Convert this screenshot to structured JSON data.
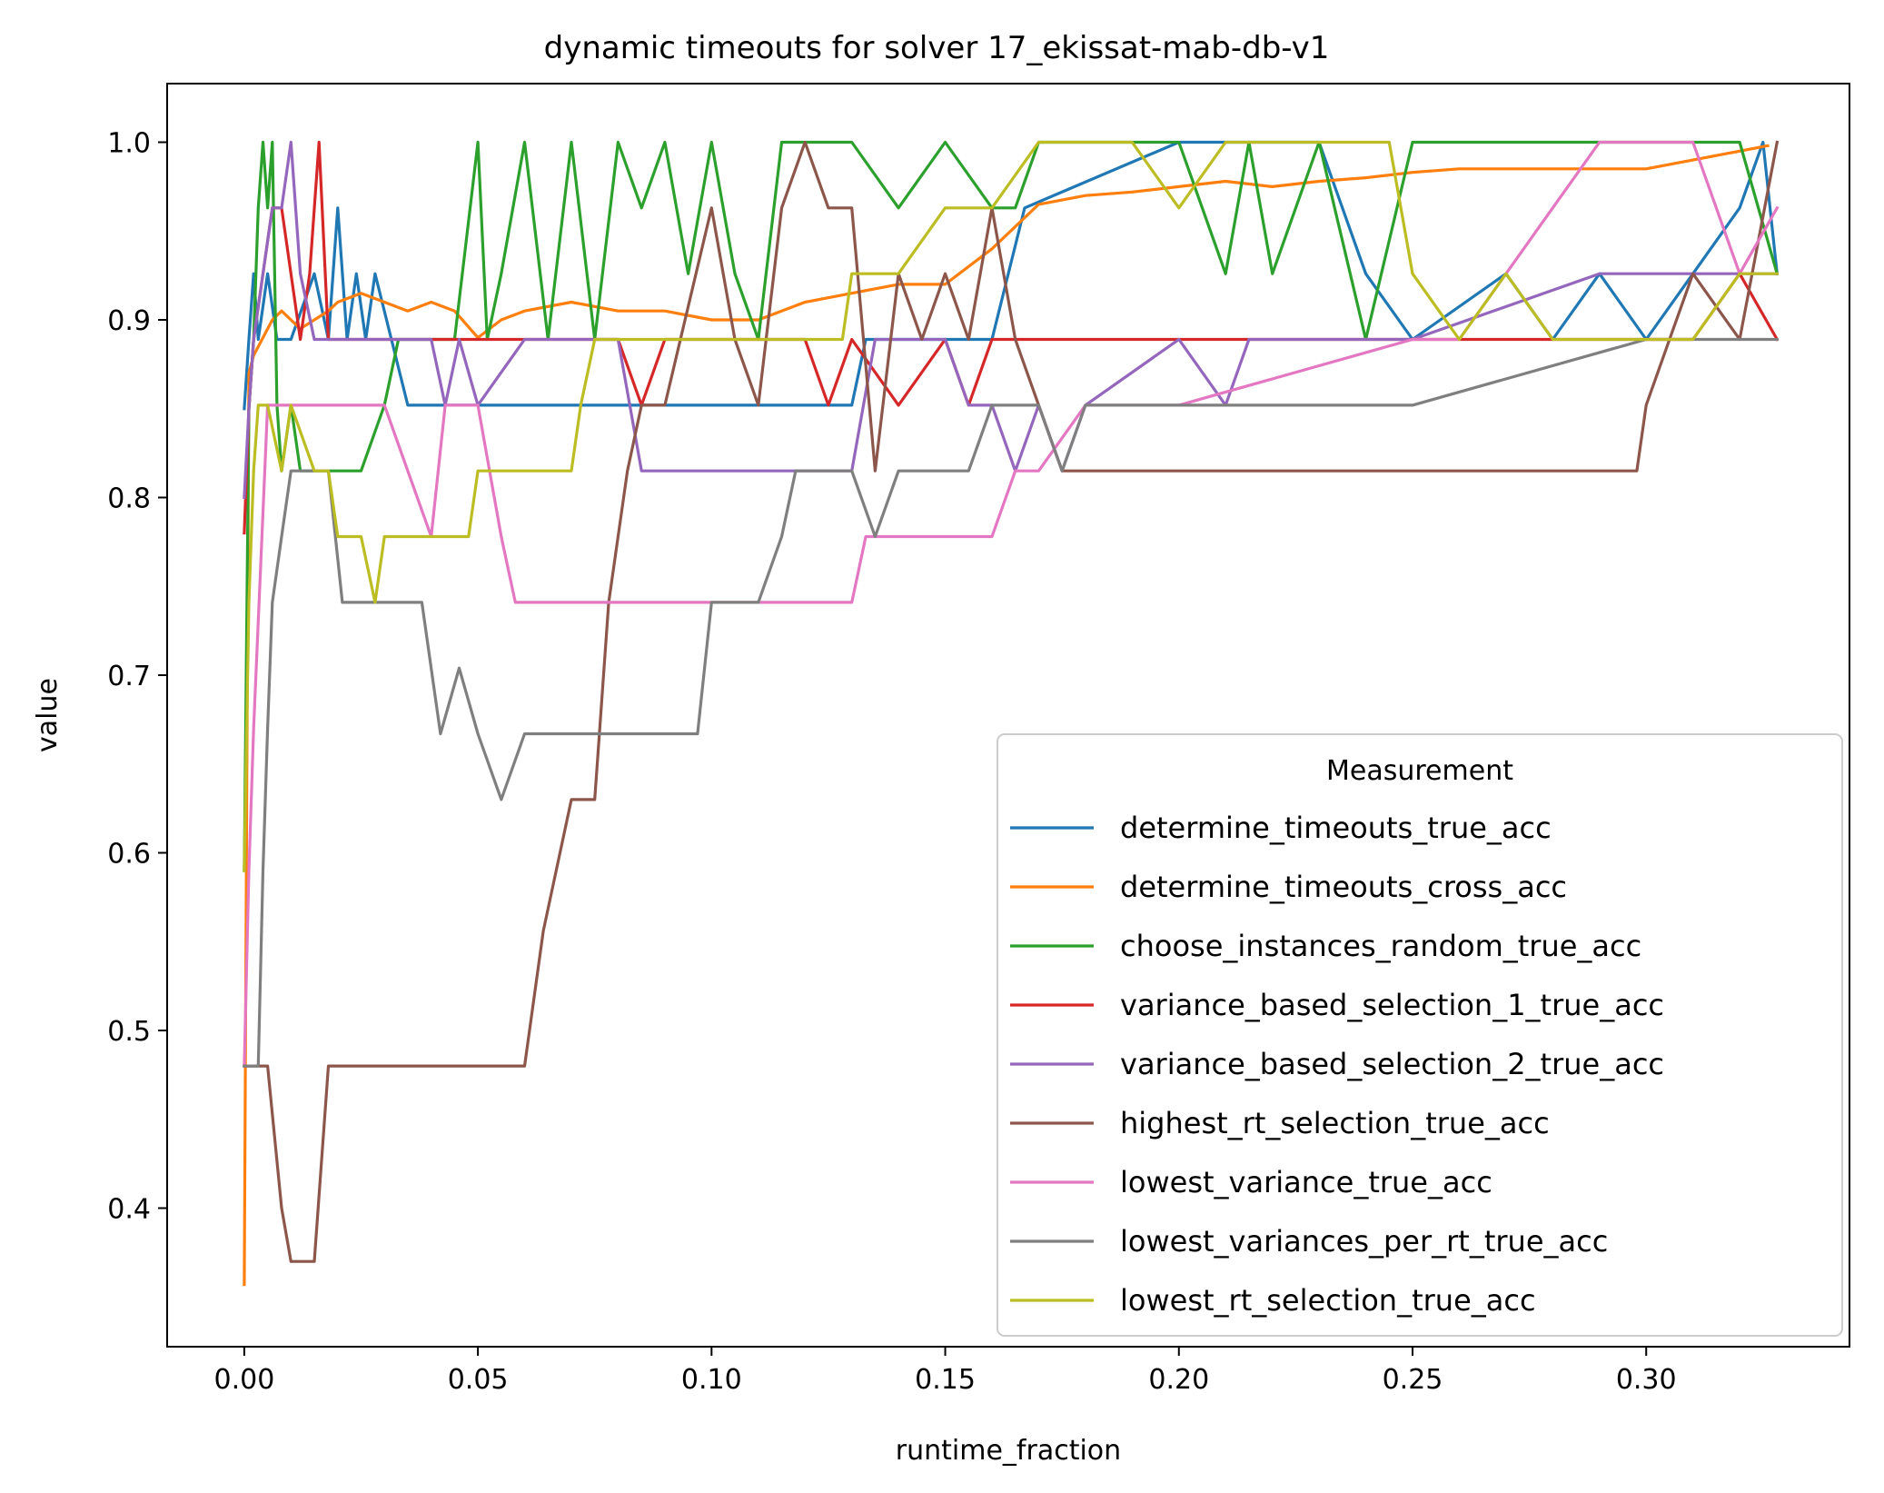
{
  "chart_data": {
    "type": "line",
    "title": "dynamic timeouts for solver 17_ekissat-mab-db-v1",
    "xlabel": "runtime_fraction",
    "ylabel": "value",
    "xlim": [
      -0.0165,
      0.3435
    ],
    "ylim": [
      0.322,
      1.033
    ],
    "xticks": [
      "0.00",
      "0.05",
      "0.10",
      "0.15",
      "0.20",
      "0.25",
      "0.30"
    ],
    "xtick_values": [
      0.0,
      0.05,
      0.1,
      0.15,
      0.2,
      0.25,
      0.3
    ],
    "yticks": [
      "0.4",
      "0.5",
      "0.6",
      "0.7",
      "0.8",
      "0.9",
      "1.0"
    ],
    "ytick_values": [
      0.4,
      0.5,
      0.6,
      0.7,
      0.8,
      0.9,
      1.0
    ],
    "grid": false,
    "legend": {
      "title": "Measurement",
      "placement": "lower-right"
    },
    "series": [
      {
        "name": "determine_timeouts_true_acc",
        "color": "#1f77b4",
        "x": [
          0,
          0.001,
          0.002,
          0.003,
          0.005,
          0.007,
          0.01,
          0.015,
          0.018,
          0.02,
          0.022,
          0.024,
          0.026,
          0.028,
          0.035,
          0.05,
          0.08,
          0.1,
          0.13,
          0.133,
          0.16,
          0.167,
          0.2,
          0.21,
          0.23,
          0.24,
          0.25,
          0.27,
          0.28,
          0.29,
          0.3,
          0.31,
          0.32,
          0.325,
          0.328
        ],
        "y": [
          0.85,
          0.889,
          0.926,
          0.889,
          0.926,
          0.889,
          0.889,
          0.926,
          0.889,
          0.963,
          0.889,
          0.926,
          0.889,
          0.926,
          0.852,
          0.852,
          0.852,
          0.852,
          0.852,
          0.889,
          0.889,
          0.963,
          1.0,
          1.0,
          1.0,
          0.926,
          0.889,
          0.926,
          0.889,
          0.926,
          0.889,
          0.926,
          0.963,
          1.0,
          0.926
        ]
      },
      {
        "name": "determine_timeouts_cross_acc",
        "color": "#ff7f0e",
        "x": [
          0,
          0.001,
          0.002,
          0.004,
          0.006,
          0.008,
          0.01,
          0.012,
          0.015,
          0.018,
          0.02,
          0.025,
          0.03,
          0.035,
          0.04,
          0.045,
          0.05,
          0.055,
          0.06,
          0.07,
          0.08,
          0.09,
          0.1,
          0.11,
          0.12,
          0.13,
          0.14,
          0.15,
          0.16,
          0.17,
          0.18,
          0.19,
          0.2,
          0.21,
          0.22,
          0.23,
          0.24,
          0.25,
          0.26,
          0.27,
          0.28,
          0.29,
          0.3,
          0.31,
          0.32,
          0.326
        ],
        "y": [
          0.357,
          0.87,
          0.88,
          0.89,
          0.9,
          0.905,
          0.9,
          0.895,
          0.9,
          0.905,
          0.91,
          0.915,
          0.91,
          0.905,
          0.91,
          0.905,
          0.89,
          0.9,
          0.905,
          0.91,
          0.905,
          0.905,
          0.9,
          0.9,
          0.91,
          0.915,
          0.92,
          0.92,
          0.94,
          0.965,
          0.97,
          0.972,
          0.975,
          0.978,
          0.975,
          0.978,
          0.98,
          0.983,
          0.985,
          0.985,
          0.985,
          0.985,
          0.985,
          0.99,
          0.995,
          0.998
        ]
      },
      {
        "name": "choose_instances_random_true_acc",
        "color": "#2ca02c",
        "x": [
          0,
          0.001,
          0.002,
          0.003,
          0.004,
          0.005,
          0.006,
          0.007,
          0.008,
          0.01,
          0.012,
          0.015,
          0.02,
          0.025,
          0.03,
          0.033,
          0.035,
          0.04,
          0.045,
          0.05,
          0.052,
          0.055,
          0.06,
          0.065,
          0.07,
          0.075,
          0.08,
          0.085,
          0.09,
          0.095,
          0.1,
          0.105,
          0.11,
          0.115,
          0.12,
          0.13,
          0.14,
          0.15,
          0.16,
          0.165,
          0.17,
          0.2,
          0.21,
          0.215,
          0.22,
          0.23,
          0.24,
          0.25,
          0.3,
          0.32,
          0.328
        ],
        "y": [
          0.59,
          0.85,
          0.889,
          0.963,
          1.0,
          0.963,
          1.0,
          0.852,
          0.815,
          0.852,
          0.815,
          0.815,
          0.815,
          0.815,
          0.852,
          0.889,
          0.889,
          0.889,
          0.889,
          1.0,
          0.889,
          0.926,
          1.0,
          0.889,
          1.0,
          0.889,
          1.0,
          0.963,
          1.0,
          0.926,
          1.0,
          0.926,
          0.889,
          1.0,
          1.0,
          1.0,
          0.963,
          1.0,
          0.963,
          0.963,
          1.0,
          1.0,
          0.926,
          1.0,
          0.926,
          1.0,
          0.889,
          1.0,
          1.0,
          1.0,
          0.926
        ]
      },
      {
        "name": "variance_based_selection_1_true_acc",
        "color": "#d62728",
        "x": [
          0,
          0.001,
          0.002,
          0.004,
          0.006,
          0.008,
          0.01,
          0.012,
          0.014,
          0.016,
          0.018,
          0.02,
          0.05,
          0.08,
          0.085,
          0.09,
          0.12,
          0.125,
          0.13,
          0.14,
          0.15,
          0.155,
          0.16,
          0.3,
          0.31,
          0.32,
          0.328
        ],
        "y": [
          0.78,
          0.85,
          0.889,
          0.926,
          0.963,
          0.963,
          0.926,
          0.889,
          0.926,
          1.0,
          0.889,
          0.889,
          0.889,
          0.889,
          0.852,
          0.889,
          0.889,
          0.852,
          0.889,
          0.852,
          0.889,
          0.852,
          0.889,
          0.889,
          0.889,
          0.926,
          0.889
        ]
      },
      {
        "name": "variance_based_selection_2_true_acc",
        "color": "#9467bd",
        "x": [
          0,
          0.001,
          0.002,
          0.004,
          0.006,
          0.008,
          0.01,
          0.012,
          0.015,
          0.02,
          0.04,
          0.043,
          0.046,
          0.05,
          0.06,
          0.07,
          0.08,
          0.085,
          0.09,
          0.13,
          0.135,
          0.15,
          0.155,
          0.16,
          0.165,
          0.17,
          0.175,
          0.18,
          0.2,
          0.21,
          0.215,
          0.25,
          0.29,
          0.3,
          0.328
        ],
        "y": [
          0.8,
          0.85,
          0.889,
          0.926,
          0.963,
          0.963,
          1.0,
          0.926,
          0.889,
          0.889,
          0.889,
          0.852,
          0.889,
          0.852,
          0.889,
          0.889,
          0.889,
          0.815,
          0.815,
          0.815,
          0.889,
          0.889,
          0.852,
          0.852,
          0.815,
          0.852,
          0.815,
          0.852,
          0.889,
          0.852,
          0.889,
          0.889,
          0.926,
          0.926,
          0.926
        ]
      },
      {
        "name": "highest_rt_selection_true_acc",
        "color": "#8c564b",
        "x": [
          0,
          0.001,
          0.002,
          0.005,
          0.008,
          0.01,
          0.015,
          0.018,
          0.03,
          0.06,
          0.064,
          0.07,
          0.075,
          0.078,
          0.082,
          0.085,
          0.09,
          0.1,
          0.105,
          0.11,
          0.115,
          0.12,
          0.125,
          0.13,
          0.135,
          0.14,
          0.145,
          0.15,
          0.155,
          0.16,
          0.165,
          0.17,
          0.175,
          0.18,
          0.2,
          0.25,
          0.298,
          0.3,
          0.305,
          0.31,
          0.32,
          0.328
        ],
        "y": [
          0.48,
          0.48,
          0.48,
          0.48,
          0.4,
          0.37,
          0.37,
          0.48,
          0.48,
          0.48,
          0.556,
          0.63,
          0.63,
          0.741,
          0.815,
          0.852,
          0.852,
          0.963,
          0.889,
          0.852,
          0.963,
          1.0,
          0.963,
          0.963,
          0.815,
          0.926,
          0.889,
          0.926,
          0.889,
          0.963,
          0.889,
          0.852,
          0.815,
          0.815,
          0.815,
          0.815,
          0.815,
          0.852,
          0.889,
          0.926,
          0.889,
          1.0
        ]
      },
      {
        "name": "lowest_variance_true_acc",
        "color": "#e377c2",
        "x": [
          0,
          0.001,
          0.002,
          0.005,
          0.01,
          0.015,
          0.03,
          0.035,
          0.04,
          0.043,
          0.046,
          0.05,
          0.055,
          0.058,
          0.07,
          0.1,
          0.13,
          0.133,
          0.15,
          0.16,
          0.165,
          0.17,
          0.18,
          0.2,
          0.25,
          0.26,
          0.27,
          0.28,
          0.29,
          0.3,
          0.31,
          0.32,
          0.328
        ],
        "y": [
          0.48,
          0.59,
          0.67,
          0.852,
          0.852,
          0.852,
          0.852,
          0.815,
          0.778,
          0.852,
          0.852,
          0.852,
          0.778,
          0.741,
          0.741,
          0.741,
          0.741,
          0.778,
          0.778,
          0.778,
          0.815,
          0.815,
          0.852,
          0.852,
          0.889,
          0.889,
          0.926,
          0.963,
          1.0,
          1.0,
          1.0,
          0.926,
          0.963
        ]
      },
      {
        "name": "lowest_variances_per_rt_true_acc",
        "color": "#7f7f7f",
        "x": [
          0,
          0.001,
          0.002,
          0.003,
          0.004,
          0.005,
          0.006,
          0.008,
          0.01,
          0.012,
          0.015,
          0.018,
          0.021,
          0.03,
          0.038,
          0.042,
          0.046,
          0.05,
          0.055,
          0.06,
          0.08,
          0.097,
          0.1,
          0.11,
          0.115,
          0.118,
          0.12,
          0.13,
          0.135,
          0.14,
          0.155,
          0.16,
          0.17,
          0.175,
          0.18,
          0.2,
          0.25,
          0.3,
          0.328
        ],
        "y": [
          0.48,
          0.48,
          0.48,
          0.48,
          0.59,
          0.67,
          0.741,
          0.778,
          0.815,
          0.815,
          0.815,
          0.815,
          0.741,
          0.741,
          0.741,
          0.667,
          0.704,
          0.667,
          0.63,
          0.667,
          0.667,
          0.667,
          0.741,
          0.741,
          0.778,
          0.815,
          0.815,
          0.815,
          0.778,
          0.815,
          0.815,
          0.852,
          0.852,
          0.815,
          0.852,
          0.852,
          0.852,
          0.889,
          0.889
        ]
      },
      {
        "name": "lowest_rt_selection_true_acc",
        "color": "#bcbd22",
        "x": [
          0,
          0.001,
          0.002,
          0.003,
          0.005,
          0.008,
          0.01,
          0.015,
          0.018,
          0.02,
          0.025,
          0.028,
          0.03,
          0.04,
          0.048,
          0.05,
          0.07,
          0.072,
          0.075,
          0.1,
          0.128,
          0.13,
          0.14,
          0.15,
          0.16,
          0.17,
          0.19,
          0.2,
          0.21,
          0.22,
          0.23,
          0.24,
          0.245,
          0.25,
          0.26,
          0.27,
          0.28,
          0.29,
          0.3,
          0.31,
          0.32,
          0.328
        ],
        "y": [
          0.59,
          0.741,
          0.815,
          0.852,
          0.852,
          0.815,
          0.852,
          0.815,
          0.815,
          0.778,
          0.778,
          0.741,
          0.778,
          0.778,
          0.778,
          0.815,
          0.815,
          0.852,
          0.889,
          0.889,
          0.889,
          0.926,
          0.926,
          0.963,
          0.963,
          1.0,
          1.0,
          0.963,
          1.0,
          1.0,
          1.0,
          1.0,
          1.0,
          0.926,
          0.889,
          0.926,
          0.889,
          0.889,
          0.889,
          0.889,
          0.926,
          0.926
        ]
      }
    ]
  }
}
